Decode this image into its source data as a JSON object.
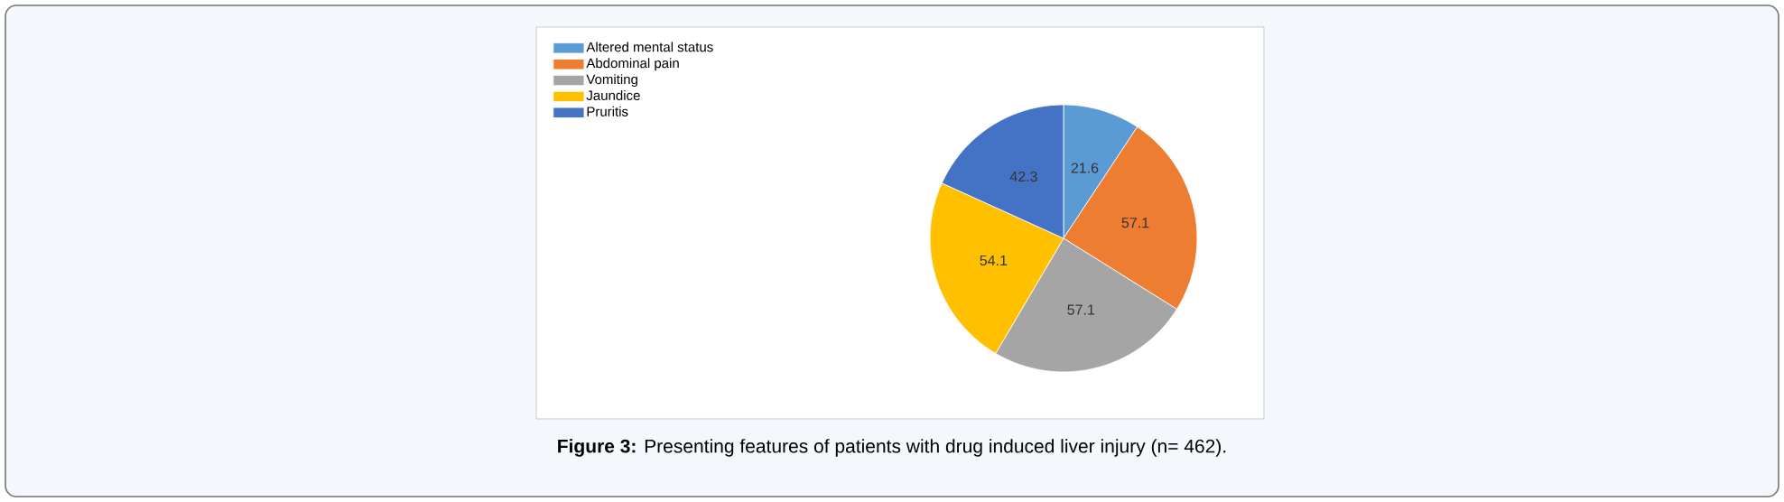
{
  "chart_data": {
    "type": "pie",
    "categories": [
      "Altered mental status",
      "Abdominal pain",
      "Vomiting",
      "Jaundice",
      "Pruritis"
    ],
    "values": [
      21.6,
      57.1,
      57.1,
      54.1,
      42.3
    ],
    "colors": [
      "#5b9bd5",
      "#ed7d31",
      "#a5a5a5",
      "#ffc000",
      "#4472c4"
    ],
    "data_labels": true,
    "legend": "top left",
    "annotations": [
      "**Figure 3:** Presenting features of patients with drug induced liver injury (n= 462)."
    ]
  }
}
